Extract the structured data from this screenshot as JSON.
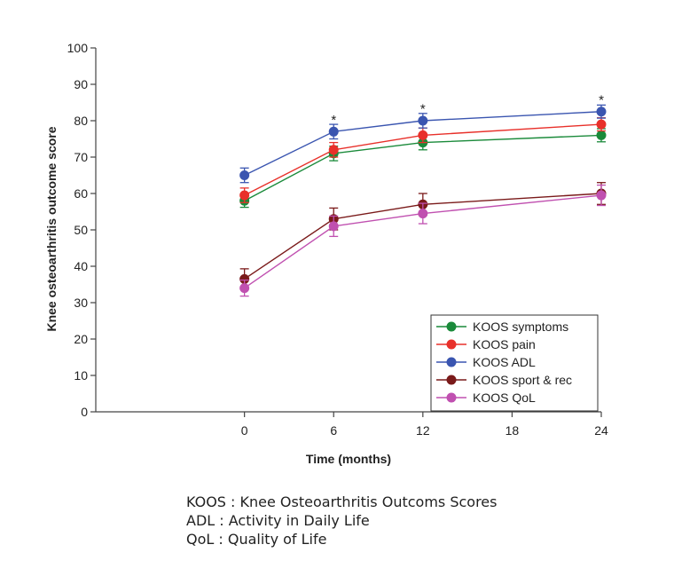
{
  "chart_data": {
    "type": "line",
    "title": "",
    "xlabel": "Time (months)",
    "ylabel": "Knee osteoarthritis outcome score",
    "xlim": [
      -10,
      24
    ],
    "ylim": [
      0,
      100
    ],
    "x_ticks": [
      0,
      6,
      12,
      18,
      24
    ],
    "y_ticks": [
      0,
      10,
      20,
      30,
      40,
      50,
      60,
      70,
      80,
      90,
      100
    ],
    "grid": false,
    "legend_position": "bottom-right",
    "x": [
      0,
      6,
      12,
      24
    ],
    "series": [
      {
        "name": "KOOS symptoms",
        "color": "#1a8a3a",
        "marker": "circle",
        "values": [
          58,
          71,
          74,
          76
        ],
        "error": [
          1.8,
          2,
          2,
          1.8
        ]
      },
      {
        "name": "KOOS pain",
        "color": "#e8302a",
        "marker": "circle",
        "values": [
          59.5,
          72,
          76,
          79
        ],
        "error": [
          2,
          2,
          2,
          1.8
        ]
      },
      {
        "name": "KOOS ADL",
        "color": "#3a55b0",
        "marker": "circle",
        "values": [
          65,
          77,
          80,
          82.5
        ],
        "error": [
          2,
          2,
          2,
          1.8
        ]
      },
      {
        "name": "KOOS sport & rec",
        "color": "#7a1a1a",
        "marker": "circle",
        "values": [
          36.5,
          53,
          57,
          60
        ],
        "error": [
          2.8,
          3,
          3,
          3
        ]
      },
      {
        "name": "KOOS QoL",
        "color": "#c050b0",
        "marker": "circle",
        "values": [
          34,
          51,
          54.5,
          59.5
        ],
        "error": [
          2.2,
          2.8,
          2.8,
          2.8
        ]
      }
    ],
    "annotations": [
      {
        "text": "*",
        "x": 6,
        "y": 81
      },
      {
        "text": "*",
        "x": 12,
        "y": 84
      },
      {
        "text": "*",
        "x": 24,
        "y": 86.5
      }
    ]
  },
  "footnotes": [
    "KOOS : Knee Osteoarthritis Outcoms Scores",
    "ADL : Activity in Daily Life",
    "QoL : Quality of Life"
  ]
}
